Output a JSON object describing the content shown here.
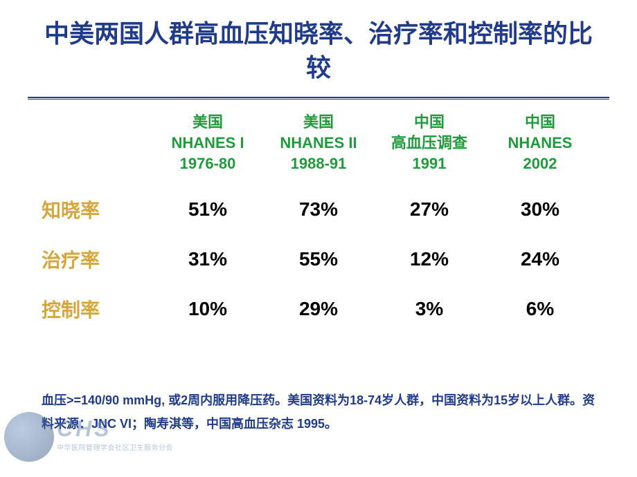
{
  "colors": {
    "title": "#1f3b8a",
    "header_text": "#1f9b3c",
    "row_label": "#d6a63a",
    "data_text": "#000000",
    "footnote": "#1f3b8a",
    "divider": "#1f3b8a"
  },
  "fonts": {
    "title_size": 36,
    "header_size": 22,
    "row_label_size": 28,
    "data_size": 28,
    "footnote_size": 18
  },
  "title": "中美两国人群高血压知晓率、治疗率和控制率的比较",
  "table": {
    "columns": [
      {
        "line1": "美国",
        "line2": "NHANES I",
        "line3": "1976-80"
      },
      {
        "line1": "美国",
        "line2": "NHANES II",
        "line3": "1988-91"
      },
      {
        "line1": "中国",
        "line2": "高血压调查",
        "line3": "1991"
      },
      {
        "line1": "中国",
        "line2": "NHANES",
        "line3": "2002"
      }
    ],
    "rows": [
      {
        "label": "知晓率",
        "values": [
          "51%",
          "73%",
          "27%",
          "30%"
        ]
      },
      {
        "label": "治疗率",
        "values": [
          "31%",
          "55%",
          "12%",
          "24%"
        ]
      },
      {
        "label": "控制率",
        "values": [
          "10%",
          "29%",
          "3%",
          "6%"
        ]
      }
    ]
  },
  "footnote": "血压>=140/90 mmHg, 或2周内服用降压药。美国资料为18-74岁人群，中国资料为15岁以上人群。资料来源：JNC VI；陶寿淇等，中国高血压杂志 1995。",
  "logo": {
    "big": "CHS",
    "small": "中华医院管理学会社区卫生服务分会"
  }
}
